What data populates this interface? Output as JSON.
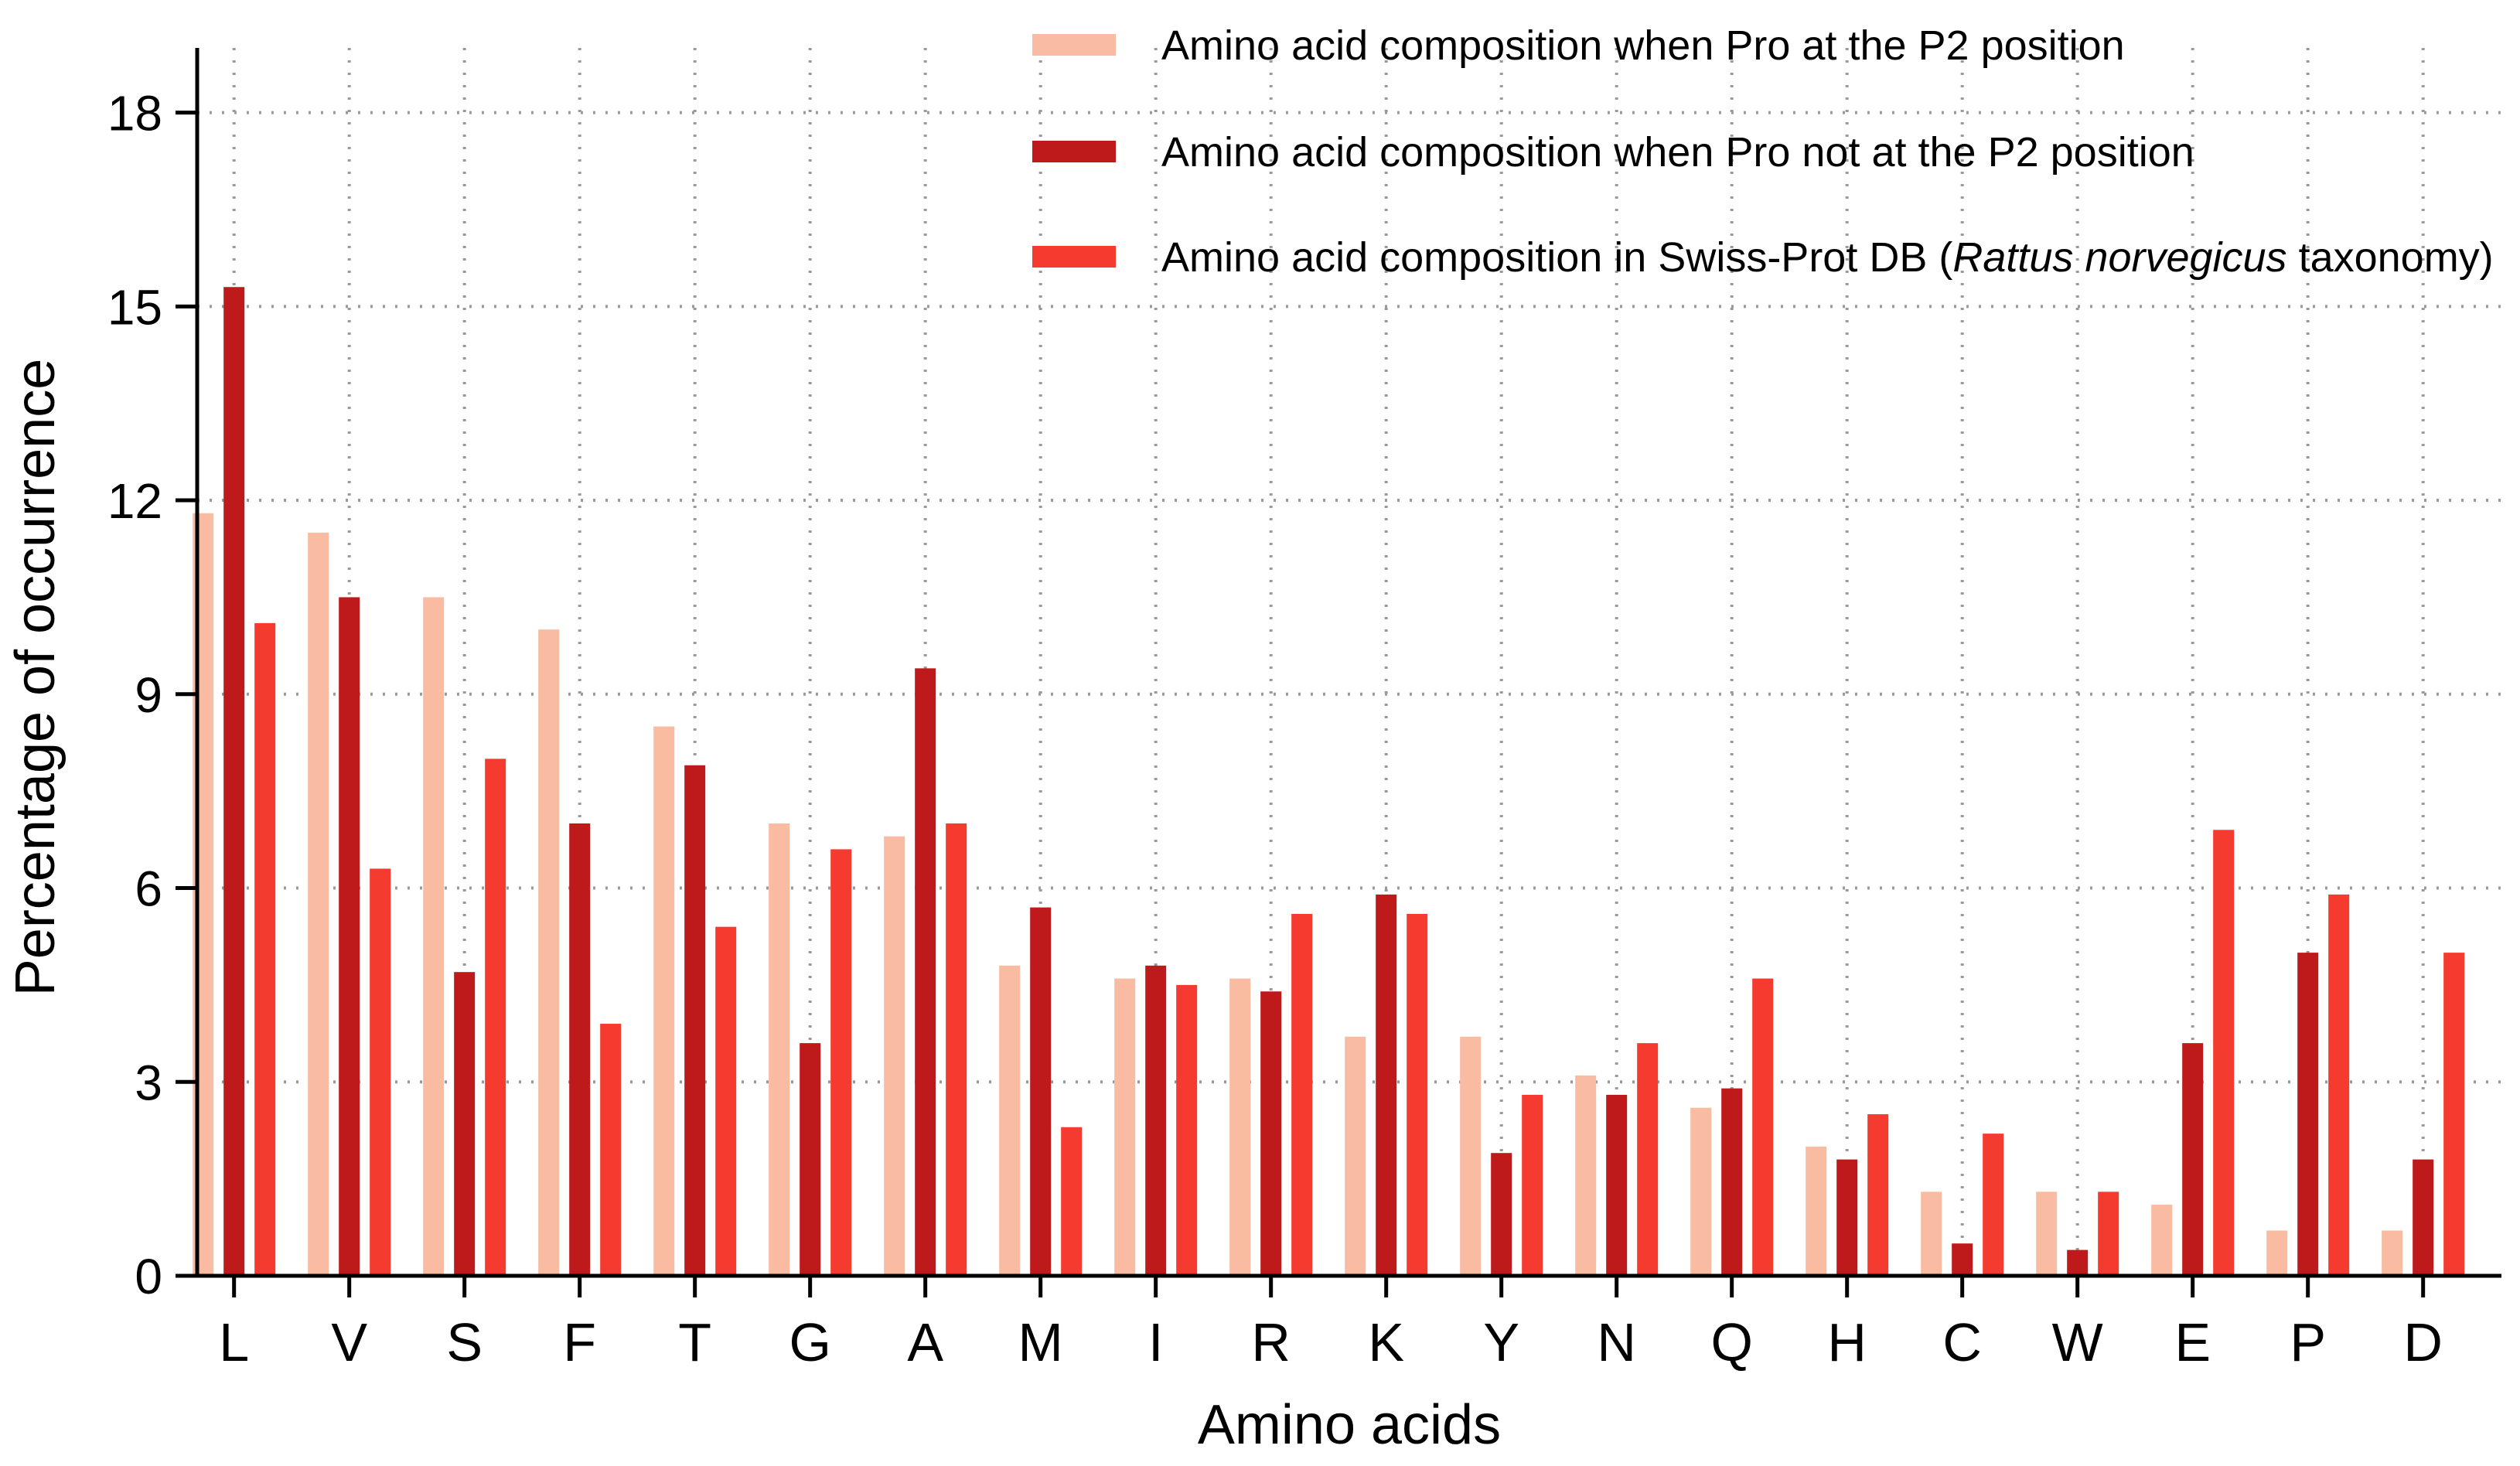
{
  "chart_data": {
    "type": "bar",
    "title": "",
    "xlabel": "Amino acids",
    "ylabel": "Percentage of occurrence",
    "ylim": [
      0,
      19
    ],
    "yticks": [
      0,
      3,
      6,
      9,
      12,
      15,
      18
    ],
    "grid": true,
    "legend_position": "top-right",
    "categories": [
      "L",
      "V",
      "S",
      "F",
      "T",
      "G",
      "A",
      "M",
      "I",
      "R",
      "K",
      "Y",
      "N",
      "Q",
      "H",
      "C",
      "W",
      "E",
      "P",
      "D"
    ],
    "series": [
      {
        "name": "Amino acid composition when Pro at the P2 position",
        "color": "#f9bba1",
        "values": [
          11.8,
          11.5,
          10.5,
          10.0,
          8.5,
          7.0,
          6.8,
          4.8,
          4.6,
          4.6,
          3.7,
          3.7,
          3.1,
          2.6,
          2.0,
          1.3,
          1.3,
          1.1,
          0.7,
          0.7
        ]
      },
      {
        "name": "Amino acid composition when Pro not at the P2 position",
        "color": "#be1a1b",
        "values": [
          15.3,
          10.5,
          4.7,
          7.0,
          7.9,
          3.6,
          9.4,
          5.7,
          4.8,
          4.4,
          5.9,
          1.9,
          2.8,
          2.9,
          1.8,
          0.5,
          0.4,
          3.6,
          5.0,
          1.8
        ]
      },
      {
        "name": "Amino acid composition in Swiss-Prot DB (Rattus norvegicus taxonomy)",
        "color": "#f53b2f",
        "values": [
          10.1,
          6.3,
          8.0,
          3.9,
          5.4,
          6.6,
          7.0,
          2.3,
          4.5,
          5.6,
          5.6,
          2.8,
          3.6,
          4.6,
          2.5,
          2.2,
          1.3,
          6.9,
          5.9,
          5.0
        ]
      }
    ],
    "legend": [
      {
        "parts": [
          "Amino acid composition when Pro at the P2 position"
        ]
      },
      {
        "parts": [
          "Amino acid composition when Pro not at the P2 position"
        ]
      },
      {
        "parts": [
          "Amino acid composition in Swiss-Prot DB (",
          "Rattus norvegicus",
          " taxonomy)"
        ]
      }
    ]
  }
}
